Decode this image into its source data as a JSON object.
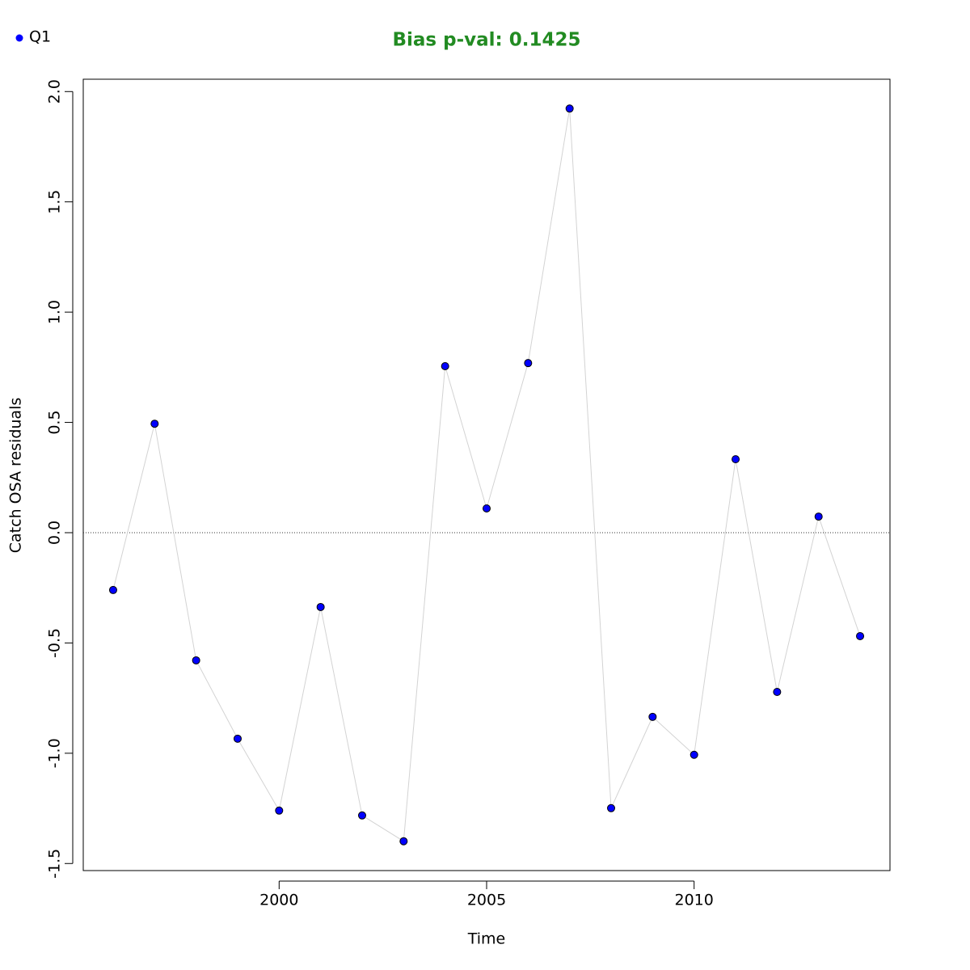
{
  "chart_data": {
    "type": "line",
    "title": "Bias p-val: 0.1425",
    "title_color": "#228b22",
    "x_label": "Time",
    "y_label": "Catch OSA residuals",
    "x": [
      1996,
      1997,
      1998,
      1999,
      2000,
      2001,
      2002,
      2003,
      2004,
      2005,
      2006,
      2007,
      2008,
      2009,
      2010,
      2011,
      2012,
      2013,
      2014
    ],
    "series": [
      {
        "name": "Q1",
        "color": "#0000ff",
        "line_color": "#d3d3d3",
        "values": [
          -0.26,
          0.494,
          -0.579,
          -0.934,
          -1.26,
          -0.337,
          -1.282,
          -1.399,
          0.755,
          0.11,
          0.769,
          1.923,
          -1.249,
          -0.835,
          -1.007,
          0.333,
          -0.722,
          0.073,
          -0.469
        ]
      }
    ],
    "xlim": [
      1995.28,
      2014.72
    ],
    "ylim": [
      -1.532,
      2.056
    ],
    "xticks": [
      2000,
      2005,
      2010
    ],
    "yticks": [
      -1.5,
      {
        "value": -1,
        "label": "-1.0"
      },
      -0.5,
      {
        "value": 0,
        "label": "0.0"
      },
      0.5,
      {
        "value": 1,
        "label": "1.0"
      },
      1.5,
      {
        "value": 2,
        "label": "2.0"
      }
    ],
    "reference_line": 0,
    "legend": "top-left",
    "grid": false
  }
}
